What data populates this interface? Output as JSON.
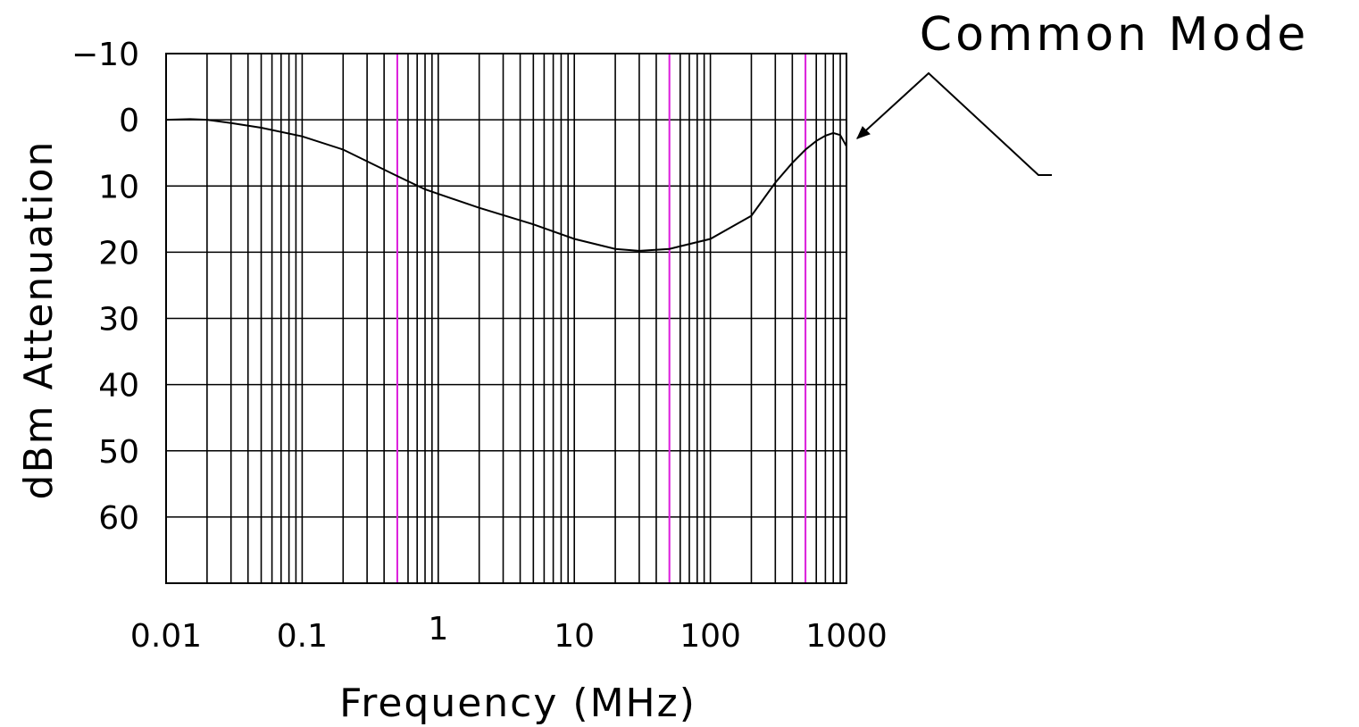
{
  "chart_data": {
    "type": "line",
    "title": "",
    "xlabel": "Frequency (MHz)",
    "ylabel": "dBm Attenuation",
    "x_scale": "log",
    "xlim": [
      0.01,
      1000
    ],
    "ylim": [
      70,
      -10
    ],
    "y_inverted": true,
    "grid": true,
    "x_ticks": [
      {
        "value": 0.01,
        "label": "0.01"
      },
      {
        "value": 0.1,
        "label": "0.1"
      },
      {
        "value": 1,
        "label": "1"
      },
      {
        "value": 10,
        "label": "10"
      },
      {
        "value": 100,
        "label": "100"
      },
      {
        "value": 1000,
        "label": "1000"
      }
    ],
    "y_ticks": [
      {
        "value": -10,
        "label": "−10"
      },
      {
        "value": 0,
        "label": "0"
      },
      {
        "value": 10,
        "label": "10"
      },
      {
        "value": 20,
        "label": "20"
      },
      {
        "value": 30,
        "label": "30"
      },
      {
        "value": 40,
        "label": "40"
      },
      {
        "value": 50,
        "label": "50"
      },
      {
        "value": 60,
        "label": "60"
      }
    ],
    "highlight_lines_x": [
      0.5,
      50,
      500
    ],
    "highlight_color": "#e020e0",
    "line_color": "#000000",
    "annotation": {
      "text": "Common Mode"
    },
    "series": [
      {
        "name": "Common Mode",
        "x": [
          0.01,
          0.015,
          0.02,
          0.03,
          0.05,
          0.1,
          0.2,
          0.5,
          0.8,
          1,
          2,
          5,
          10,
          20,
          30,
          50,
          100,
          200,
          300,
          400,
          500,
          600,
          700,
          800,
          900,
          1000
        ],
        "y": [
          0,
          -0.1,
          0,
          0.5,
          1.2,
          2.5,
          4.5,
          8.5,
          10.5,
          11.2,
          13.3,
          15.8,
          18,
          19.5,
          19.8,
          19.5,
          18,
          14.5,
          9.5,
          6.5,
          4.5,
          3.2,
          2.4,
          2.0,
          2.3,
          4.0
        ]
      }
    ]
  }
}
